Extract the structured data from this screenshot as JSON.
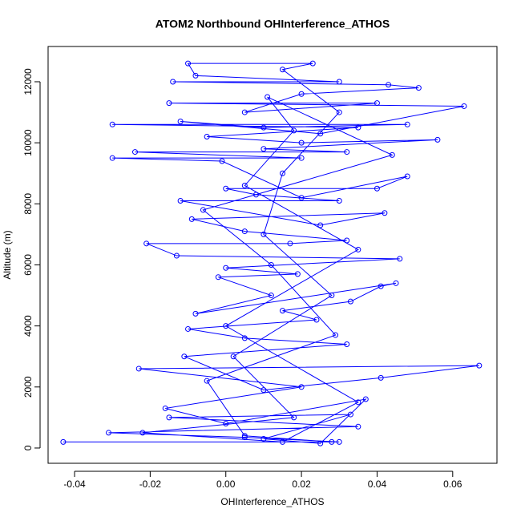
{
  "chart_data": {
    "type": "line",
    "title": "ATOM2 Northbound OHInterference_ATHOS",
    "x_label": "OHInterference_ATHOS",
    "y_label": "Altitude (m)",
    "color": "#0000ff",
    "markers": true,
    "xlim": [
      -0.047,
      0.0717
    ],
    "ylim": [
      -500,
      13155
    ],
    "xticks": [
      -0.04,
      -0.02,
      {
        "value": 0,
        "label": "0.00"
      },
      0.02,
      0.04,
      0.06
    ],
    "yticks": [
      0,
      2000,
      4000,
      6000,
      8000,
      10000,
      12000
    ],
    "x": [
      -0.043,
      0.03,
      0.005,
      -0.031,
      0.035,
      -0.015,
      0.033,
      0.01,
      0.025,
      0.037,
      0.0,
      -0.016,
      0.02,
      -0.023,
      0.067,
      0.041,
      0.01,
      -0.011,
      0.032,
      0.005,
      -0.01,
      0.024,
      0.015,
      0.033,
      0.041,
      0.045,
      -0.008,
      0.012,
      -0.002,
      0.019,
      0.0,
      0.046,
      -0.013,
      -0.021,
      0.017,
      0.032,
      0.005,
      -0.009,
      0.042,
      0.025,
      -0.012,
      0.03,
      0.008,
      0.0,
      0.04,
      0.048,
      0.02,
      -0.001,
      -0.03,
      0.02,
      -0.024,
      0.032,
      0.01,
      0.056,
      0.02,
      -0.005,
      0.035,
      -0.03,
      0.048,
      0.01,
      -0.012,
      0.025,
      0.063,
      -0.015,
      0.04,
      0.005,
      0.02,
      0.051,
      0.043,
      -0.014,
      0.03,
      -0.008,
      -0.01,
      0.023,
      0.015,
      0.03,
      0.015,
      0.01,
      0.028,
      0.002,
      0.018,
      -0.022,
      0.015,
      0.035,
      0.0,
      0.035,
      0.005,
      0.018,
      0.011,
      0.044,
      -0.006,
      0.012,
      0.029,
      -0.005,
      0.005,
      0.028
    ],
    "values": [
      200,
      200,
      350,
      500,
      700,
      1000,
      1100,
      300,
      150,
      1600,
      800,
      1300,
      2000,
      2600,
      2700,
      2300,
      1900,
      3000,
      3400,
      3600,
      3900,
      4200,
      4500,
      4800,
      5300,
      5400,
      4400,
      5000,
      5600,
      5700,
      5900,
      6200,
      6300,
      6700,
      6700,
      6800,
      7100,
      7500,
      7700,
      7300,
      8100,
      8100,
      8300,
      8500,
      8500,
      8900,
      8200,
      9400,
      9500,
      9500,
      9700,
      9700,
      9800,
      10100,
      10000,
      10200,
      10500,
      10600,
      10600,
      10500,
      10700,
      10300,
      11200,
      11300,
      11300,
      11000,
      11600,
      11800,
      11900,
      12000,
      12000,
      12200,
      12600,
      12600,
      12400,
      11000,
      9000,
      7000,
      5000,
      3000,
      1000,
      500,
      200,
      1500,
      4000,
      6500,
      8600,
      10400,
      11500,
      9600,
      7800,
      6000,
      3700,
      2200,
      400,
      200
    ]
  }
}
